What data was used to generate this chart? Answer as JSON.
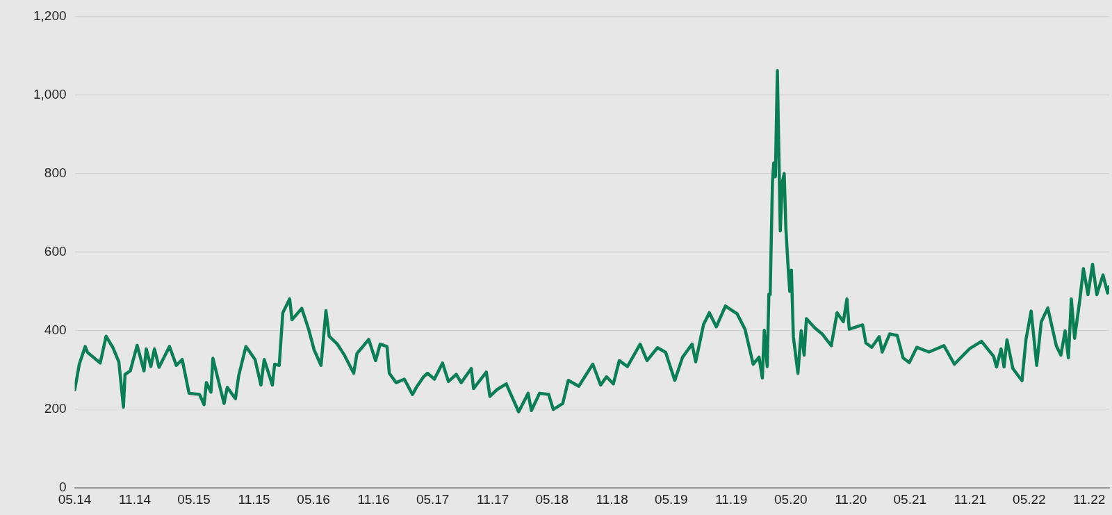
{
  "chart_data": {
    "type": "line",
    "x": [
      "2014-05-01",
      "2014-05-15",
      "2014-06-02",
      "2014-06-09",
      "2014-07-18",
      "2014-08-05",
      "2014-08-26",
      "2014-09-13",
      "2014-09-27",
      "2014-10-02",
      "2014-10-18",
      "2014-11-08",
      "2014-11-29",
      "2014-12-06",
      "2014-12-20",
      "2014-12-31",
      "2015-01-14",
      "2015-02-15",
      "2015-03-08",
      "2015-03-26",
      "2015-04-16",
      "2015-05-18",
      "2015-06-01",
      "2015-06-08",
      "2015-06-22",
      "2015-06-28",
      "2015-08-01",
      "2015-08-11",
      "2015-09-05",
      "2015-09-15",
      "2015-10-07",
      "2015-11-04",
      "2015-11-22",
      "2015-12-02",
      "2015-12-27",
      "2016-01-03",
      "2016-01-17",
      "2016-01-28",
      "2016-02-18",
      "2016-02-25",
      "2016-03-26",
      "2016-04-16",
      "2016-05-03",
      "2016-05-24",
      "2016-06-08",
      "2016-06-18",
      "2016-07-13",
      "2016-08-03",
      "2016-09-01",
      "2016-09-11",
      "2016-10-17",
      "2016-11-07",
      "2016-11-21",
      "2016-12-12",
      "2016-12-19",
      "2017-01-09",
      "2017-02-03",
      "2017-02-28",
      "2017-03-14",
      "2017-04-03",
      "2017-04-15",
      "2017-05-06",
      "2017-05-31",
      "2017-06-18",
      "2017-07-12",
      "2017-07-27",
      "2017-08-27",
      "2017-09-03",
      "2017-10-12",
      "2017-10-23",
      "2017-11-13",
      "2017-12-12",
      "2018-01-19",
      "2018-02-17",
      "2018-02-27",
      "2018-03-24",
      "2018-04-21",
      "2018-05-05",
      "2018-06-03",
      "2018-06-20",
      "2018-07-22",
      "2018-09-03",
      "2018-09-27",
      "2018-10-15",
      "2018-11-05",
      "2018-11-23",
      "2018-12-18",
      "2019-01-26",
      "2019-02-16",
      "2019-03-20",
      "2019-04-14",
      "2019-05-12",
      "2019-06-05",
      "2019-07-04",
      "2019-07-15",
      "2019-08-08",
      "2019-08-26",
      "2019-09-16",
      "2019-10-14",
      "2019-11-19",
      "2019-12-13",
      "2020-01-07",
      "2020-01-25",
      "2020-02-04",
      "2020-02-10",
      "2020-02-19",
      "2020-02-24",
      "2020-02-28",
      "2020-03-06",
      "2020-03-10",
      "2020-03-15",
      "2020-03-21",
      "2020-03-27",
      "2020-03-30",
      "2020-04-05",
      "2020-04-11",
      "2020-04-16",
      "2020-04-23",
      "2020-04-28",
      "2020-05-03",
      "2020-05-09",
      "2020-05-23",
      "2020-06-02",
      "2020-06-11",
      "2020-06-18",
      "2020-07-13",
      "2020-08-05",
      "2020-09-02",
      "2020-09-20",
      "2020-10-09",
      "2020-10-20",
      "2020-10-27",
      "2020-12-07",
      "2020-12-17",
      "2021-01-04",
      "2021-01-27",
      "2021-02-05",
      "2021-02-28",
      "2021-03-23",
      "2021-04-10",
      "2021-04-29",
      "2021-05-22",
      "2021-06-28",
      "2021-08-13",
      "2021-09-14",
      "2021-10-30",
      "2021-12-06",
      "2022-01-12",
      "2022-01-21",
      "2022-02-04",
      "2022-02-13",
      "2022-02-22",
      "2022-03-12",
      "2022-04-09",
      "2022-04-21",
      "2022-05-07",
      "2022-05-24",
      "2022-06-07",
      "2022-06-27",
      "2022-07-23",
      "2022-08-06",
      "2022-08-19",
      "2022-08-29",
      "2022-09-07",
      "2022-09-17",
      "2022-10-04",
      "2022-10-14",
      "2022-10-28",
      "2022-11-11",
      "2022-11-24",
      "2022-12-13",
      "2022-12-27",
      "2022-12-31"
    ],
    "series": [
      {
        "color": "#0a7f56",
        "values": [
          250,
          315,
          360,
          345,
          318,
          386,
          357,
          321,
          206,
          289,
          298,
          363,
          298,
          354,
          309,
          354,
          307,
          360,
          312,
          327,
          241,
          238,
          212,
          268,
          244,
          330,
          215,
          256,
          227,
          286,
          360,
          327,
          262,
          327,
          262,
          315,
          312,
          446,
          481,
          428,
          457,
          404,
          351,
          312,
          451,
          386,
          366,
          339,
          292,
          342,
          378,
          324,
          366,
          360,
          292,
          268,
          277,
          238,
          259,
          283,
          292,
          277,
          318,
          271,
          289,
          268,
          304,
          253,
          295,
          233,
          250,
          265,
          194,
          241,
          197,
          241,
          238,
          200,
          215,
          274,
          259,
          315,
          262,
          283,
          265,
          324,
          309,
          366,
          324,
          357,
          345,
          274,
          333,
          366,
          321,
          416,
          446,
          410,
          463,
          443,
          404,
          315,
          333,
          280,
          401,
          309,
          493,
          492,
          777,
          827,
          792,
          1062,
          792,
          654,
          777,
          800,
          662,
          562,
          500,
          554,
          385,
          292,
          400,
          338,
          431,
          408,
          392,
          362,
          446,
          423,
          481,
          404,
          415,
          369,
          358,
          385,
          346,
          392,
          388,
          331,
          319,
          358,
          346,
          362,
          315,
          354,
          373,
          335,
          308,
          354,
          308,
          377,
          304,
          273,
          377,
          450,
          312,
          423,
          458,
          362,
          338,
          400,
          331,
          481,
          381,
          485,
          558,
          492,
          569,
          492,
          542,
          496,
          512
        ]
      }
    ],
    "xlim": [
      "2014-05-01",
      "2023-01-01"
    ],
    "xticks": [
      {
        "value": "2014-05-01",
        "label": "05.14"
      },
      {
        "value": "2014-11-01",
        "label": "11.14"
      },
      {
        "value": "2015-05-01",
        "label": "05.15"
      },
      {
        "value": "2015-11-01",
        "label": "11.15"
      },
      {
        "value": "2016-05-01",
        "label": "05.16"
      },
      {
        "value": "2016-11-01",
        "label": "11.16"
      },
      {
        "value": "2017-05-01",
        "label": "05.17"
      },
      {
        "value": "2017-11-01",
        "label": "11.17"
      },
      {
        "value": "2018-05-01",
        "label": "05.18"
      },
      {
        "value": "2018-11-01",
        "label": "11.18"
      },
      {
        "value": "2019-05-01",
        "label": "05.19"
      },
      {
        "value": "2019-11-01",
        "label": "11.19"
      },
      {
        "value": "2020-05-01",
        "label": "05.20"
      },
      {
        "value": "2020-11-01",
        "label": "11.20"
      },
      {
        "value": "2021-05-01",
        "label": "05.21"
      },
      {
        "value": "2021-11-01",
        "label": "11.21"
      },
      {
        "value": "2022-05-01",
        "label": "05.22"
      },
      {
        "value": "2022-11-01",
        "label": "11.22"
      }
    ],
    "ylim": [
      0,
      1200
    ],
    "yticks": [
      0,
      200,
      400,
      600,
      800,
      {
        "value": 1000,
        "label": "1,000"
      },
      {
        "value": 1200,
        "label": "1,200"
      }
    ],
    "grid": "y",
    "marker": "none",
    "line_style": "solid",
    "legend": false
  }
}
